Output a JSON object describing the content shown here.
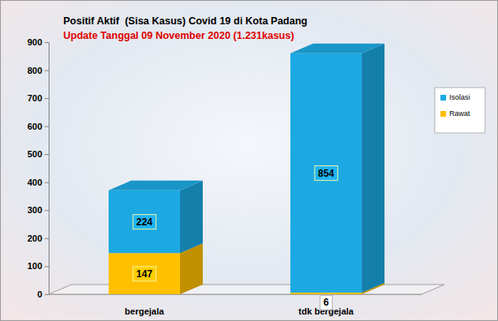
{
  "chart_data": {
    "type": "bar",
    "title": "Positif Aktif  (Sisa Kasus) Covid 19 di Kota Padang",
    "subtitle": "Update Tanggal 09 November 2020 (1.231kasus)",
    "categories": [
      "bergejala",
      "tdk bergejala"
    ],
    "series": [
      {
        "name": "Rawat",
        "color": "#FFC000",
        "values": [
          147,
          6
        ]
      },
      {
        "name": "Isolasi",
        "color": "#1CA9E3",
        "values": [
          224,
          854
        ]
      }
    ],
    "ylim": [
      0,
      900
    ],
    "yticks": [
      0,
      100,
      200,
      300,
      400,
      500,
      600,
      700,
      800,
      900
    ],
    "stacked": true,
    "data_labels": true,
    "legend": "right",
    "grid": false
  }
}
